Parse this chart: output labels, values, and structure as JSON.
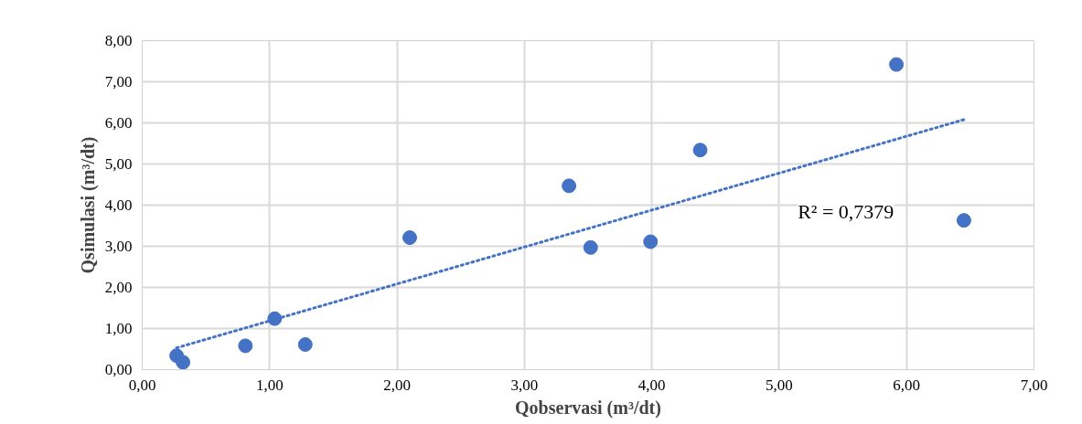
{
  "chart_data": {
    "type": "scatter",
    "xlabel": "Qobservasi (m³/dt)",
    "ylabel": "Qsimulasi (m³/dt)",
    "annotations": [
      "R² = 0,7379"
    ],
    "series": [
      {
        "color": "#4472c4",
        "x": [
          0.27,
          0.32,
          0.81,
          1.04,
          1.28,
          2.1,
          3.35,
          3.52,
          3.99,
          4.38,
          5.92,
          6.45
        ],
        "values": [
          0.34,
          0.18,
          0.58,
          1.24,
          0.61,
          3.21,
          4.47,
          2.97,
          3.11,
          5.34,
          7.42,
          3.63
        ],
        "marker": "circle"
      },
      {
        "type": "line",
        "color": "#4472c4",
        "x": [
          0.27,
          6.45
        ],
        "values": [
          0.53,
          6.08
        ],
        "line_style": "dotted",
        "marker": "none"
      }
    ],
    "xlim": [
      0,
      7
    ],
    "ylim": [
      0,
      8
    ],
    "xticks": [
      {
        "value": 0,
        "label": "0,00"
      },
      {
        "value": 1,
        "label": "1,00"
      },
      {
        "value": 2,
        "label": "2,00"
      },
      {
        "value": 3,
        "label": "3,00"
      },
      {
        "value": 4,
        "label": "4,00"
      },
      {
        "value": 5,
        "label": "5,00"
      },
      {
        "value": 6,
        "label": "6,00"
      },
      {
        "value": 7,
        "label": "7,00"
      }
    ],
    "yticks": [
      {
        "value": 0,
        "label": "0,00"
      },
      {
        "value": 1,
        "label": "1,00"
      },
      {
        "value": 2,
        "label": "2,00"
      },
      {
        "value": 3,
        "label": "3,00"
      },
      {
        "value": 4,
        "label": "4,00"
      },
      {
        "value": 5,
        "label": "5,00"
      },
      {
        "value": 6,
        "label": "6,00"
      },
      {
        "value": 7,
        "label": "7,00"
      },
      {
        "value": 8,
        "label": "8,00"
      }
    ],
    "grid": true
  }
}
